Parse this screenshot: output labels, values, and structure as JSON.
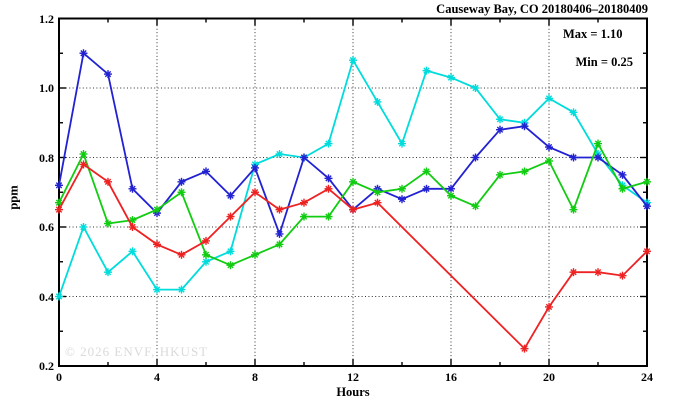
{
  "page": {
    "background": "#ffffff"
  },
  "chart_data": {
    "type": "line",
    "title": "Causeway Bay, CO 20180406–20180409",
    "xlabel": "Hours",
    "ylabel": "ppm",
    "xlim": [
      0,
      24
    ],
    "ylim": [
      0.2,
      1.2
    ],
    "x_major_ticks": [
      0,
      4,
      8,
      12,
      16,
      20,
      24
    ],
    "x_tick_labels": [
      "0",
      "4",
      "8",
      "12",
      "16",
      "20",
      "24"
    ],
    "x_minor_ticks": [
      2,
      6,
      10,
      14,
      18,
      22
    ],
    "y_major_ticks": [
      0.2,
      0.4,
      0.6,
      0.8,
      1.0,
      1.2
    ],
    "y_tick_labels": [
      "0.2",
      "0.4",
      "0.6",
      "0.8",
      "1.0",
      "1.2"
    ],
    "y_minor_ticks": [
      0.3,
      0.5,
      0.7,
      0.9,
      1.1
    ],
    "grid": {
      "style": "dotted",
      "x_at": [
        4,
        8,
        12,
        16,
        20
      ],
      "y_at": [
        0.4,
        0.6,
        0.8,
        1.0
      ]
    },
    "legend": "none",
    "annotations": {
      "max": "Max = 1.10",
      "min": "Min = 0.25"
    },
    "watermark": "© 2026 ENVF, HKUST",
    "x": [
      0,
      1,
      2,
      3,
      4,
      5,
      6,
      7,
      8,
      9,
      10,
      11,
      12,
      13,
      14,
      15,
      16,
      17,
      18,
      19,
      20,
      21,
      22,
      23,
      24
    ],
    "series": [
      {
        "name": "series-cyan",
        "color": "#00dcdc",
        "values": [
          0.4,
          0.6,
          0.47,
          0.53,
          0.42,
          0.42,
          0.5,
          0.53,
          0.78,
          0.81,
          0.8,
          0.84,
          1.08,
          0.96,
          0.84,
          1.05,
          1.03,
          1.0,
          0.91,
          0.9,
          0.97,
          0.93,
          0.81,
          0.72,
          0.67
        ]
      },
      {
        "name": "series-blue",
        "color": "#2222d2",
        "values": [
          0.72,
          1.1,
          1.04,
          0.71,
          0.64,
          0.73,
          0.76,
          0.69,
          0.77,
          0.58,
          0.8,
          0.74,
          0.65,
          0.71,
          0.68,
          0.71,
          0.71,
          0.8,
          0.88,
          0.89,
          0.83,
          0.8,
          0.8,
          0.75,
          0.66
        ]
      },
      {
        "name": "series-green",
        "color": "#11cc11",
        "values": [
          0.67,
          0.81,
          0.61,
          0.62,
          0.65,
          0.7,
          0.52,
          0.49,
          0.52,
          0.55,
          0.63,
          0.63,
          0.73,
          0.7,
          0.71,
          0.76,
          0.69,
          0.66,
          0.75,
          0.76,
          0.79,
          0.65,
          0.84,
          0.71,
          0.73
        ]
      },
      {
        "name": "series-red",
        "color": "#ee2222",
        "values": [
          0.65,
          0.78,
          0.73,
          0.6,
          0.55,
          0.52,
          0.56,
          0.63,
          0.7,
          0.65,
          0.67,
          0.71,
          0.65,
          0.67,
          null,
          null,
          null,
          null,
          null,
          0.25,
          0.37,
          0.47,
          0.47,
          0.46,
          0.53
        ]
      }
    ]
  }
}
